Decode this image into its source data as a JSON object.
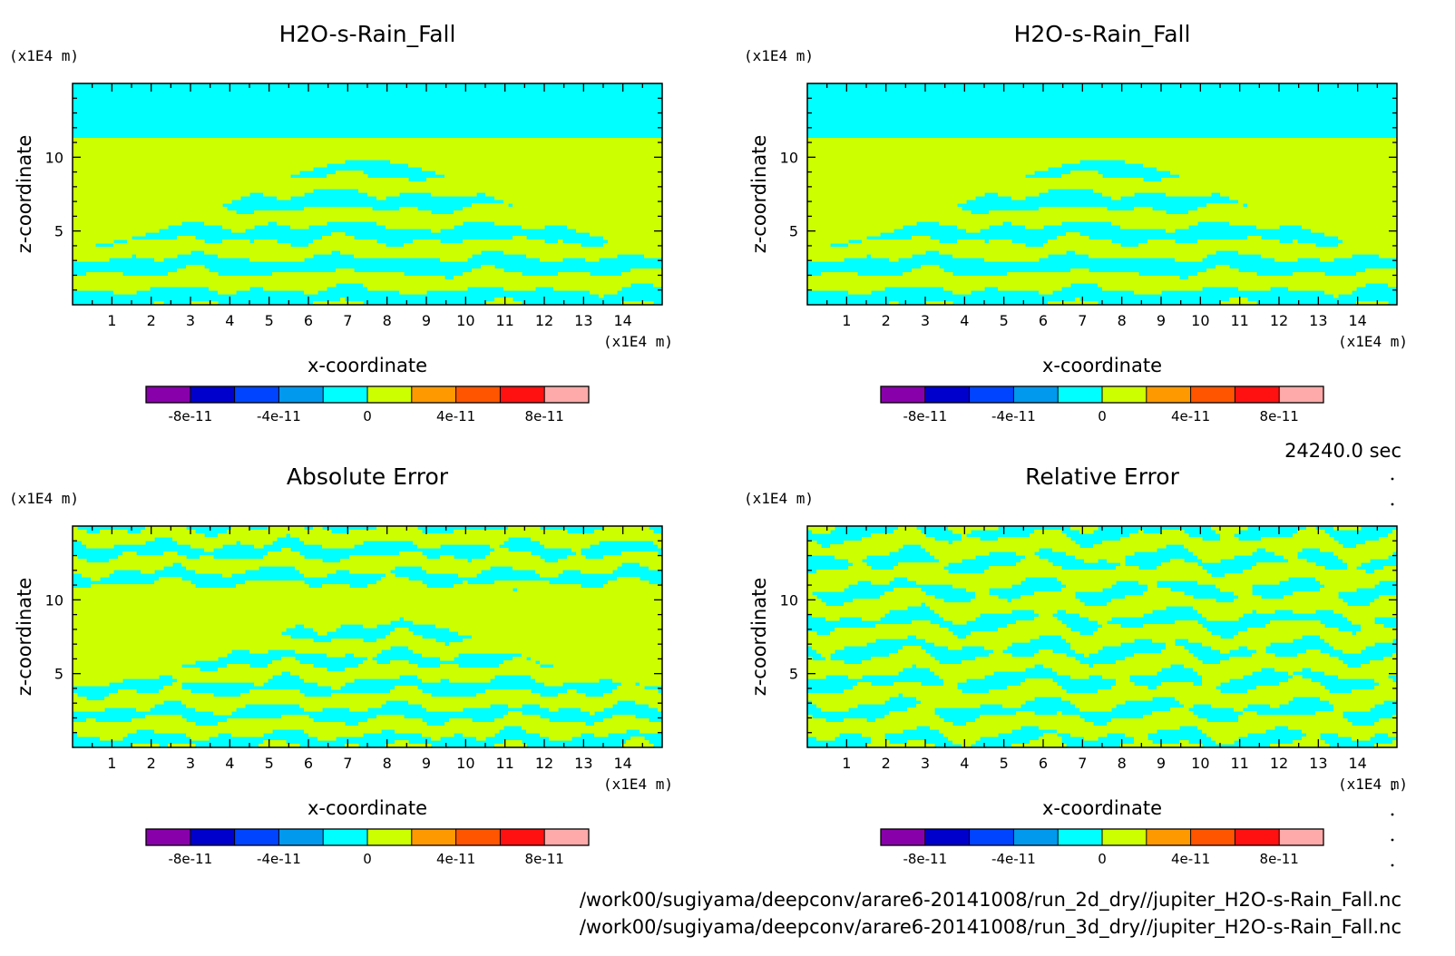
{
  "colors": {
    "cyan": "#00ffff",
    "yellow_green": "#ccff00",
    "colorbar": [
      "#8800aa",
      "#0000cc",
      "#0044ff",
      "#0099ee",
      "#00ffff",
      "#ccff00",
      "#ff9900",
      "#ff5500",
      "#ff1111",
      "#ffaaaa"
    ]
  },
  "chart_data": [
    {
      "type": "heatmap",
      "title": "H2O-s-Rain_Fall",
      "xlabel": "x-coordinate",
      "ylabel": "z-coordinate",
      "x_unit": "(x1E4 m)",
      "y_unit": "(x1E4 m)",
      "xlim": [
        0,
        15
      ],
      "ylim": [
        0,
        15
      ],
      "x_ticks": [
        1,
        2,
        3,
        4,
        5,
        6,
        7,
        8,
        9,
        10,
        11,
        12,
        13,
        14
      ],
      "y_ticks": [
        5,
        10
      ],
      "pattern": "fall",
      "colorbar_labels": [
        "-8e-11",
        "-4e-11",
        "0",
        "4e-11",
        "8e-11"
      ]
    },
    {
      "type": "heatmap",
      "title": "H2O-s-Rain_Fall",
      "xlabel": "x-coordinate",
      "ylabel": "z-coordinate",
      "x_unit": "(x1E4 m)",
      "y_unit": "(x1E4 m)",
      "xlim": [
        0,
        15
      ],
      "ylim": [
        0,
        15
      ],
      "x_ticks": [
        1,
        2,
        3,
        4,
        5,
        6,
        7,
        8,
        9,
        10,
        11,
        12,
        13,
        14
      ],
      "y_ticks": [
        5,
        10
      ],
      "pattern": "fall",
      "colorbar_labels": [
        "-8e-11",
        "-4e-11",
        "0",
        "4e-11",
        "8e-11"
      ]
    },
    {
      "type": "heatmap",
      "title": "Absolute Error",
      "xlabel": "x-coordinate",
      "ylabel": "z-coordinate",
      "x_unit": "(x1E4 m)",
      "y_unit": "(x1E4 m)",
      "xlim": [
        0,
        15
      ],
      "ylim": [
        0,
        15
      ],
      "x_ticks": [
        1,
        2,
        3,
        4,
        5,
        6,
        7,
        8,
        9,
        10,
        11,
        12,
        13,
        14
      ],
      "y_ticks": [
        5,
        10
      ],
      "pattern": "abs",
      "colorbar_labels": [
        "-8e-11",
        "-4e-11",
        "0",
        "4e-11",
        "8e-11"
      ]
    },
    {
      "type": "heatmap",
      "title": "Relative Error",
      "xlabel": "x-coordinate",
      "ylabel": "z-coordinate",
      "x_unit": "(x1E4 m)",
      "y_unit": "(x1E4 m)",
      "xlim": [
        0,
        15
      ],
      "ylim": [
        0,
        15
      ],
      "x_ticks": [
        1,
        2,
        3,
        4,
        5,
        6,
        7,
        8,
        9,
        10,
        11,
        12,
        13,
        14
      ],
      "y_ticks": [
        5,
        10
      ],
      "pattern": "rel",
      "colorbar_labels": [
        "-8e-11",
        "-4e-11",
        "0",
        "4e-11",
        "8e-11"
      ]
    }
  ],
  "time_label": "24240.0 sec",
  "file_paths": [
    "/work00/sugiyama/deepconv/arare6-20141008/run_2d_dry//jupiter_H2O-s-Rain_Fall.nc",
    "/work00/sugiyama/deepconv/arare6-20141008/run_3d_dry//jupiter_H2O-s-Rain_Fall.nc"
  ]
}
